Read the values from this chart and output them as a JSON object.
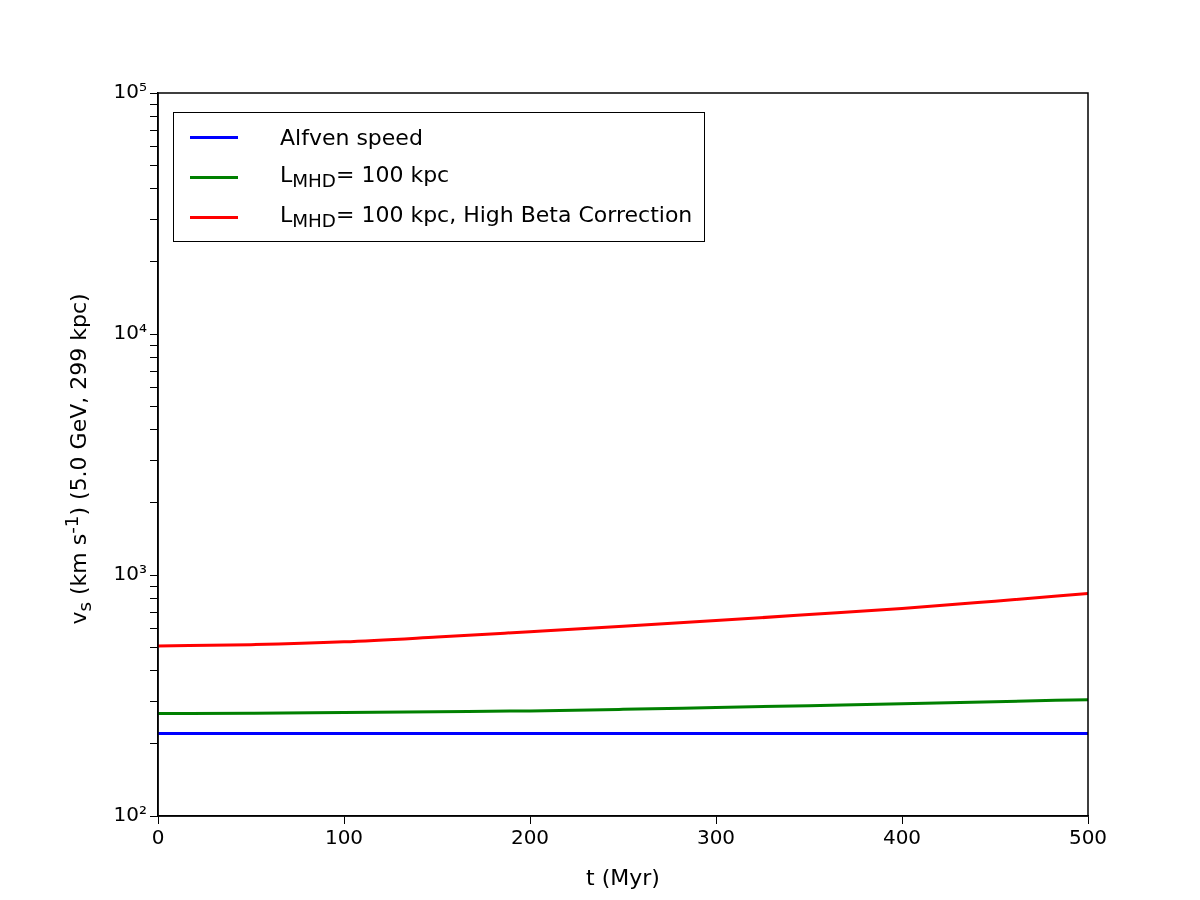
{
  "chart_data": {
    "type": "line",
    "xlabel": "t (Myr)",
    "ylabel": "v$_{s}$ (km s$^{-1}$) (5.0 GeV, 299 kpc)",
    "log": "y",
    "legend": "top left",
    "marker": "none",
    "line_style": "solid",
    "x": [
      0,
      50,
      100,
      150,
      200,
      250,
      300,
      350,
      400,
      450,
      500
    ],
    "xlim": [
      0,
      500
    ],
    "xticks": [
      0,
      100,
      200,
      300,
      400,
      500
    ],
    "ylim": [
      100,
      100000
    ],
    "yticks": [
      {
        "value": 100,
        "label": "10²"
      },
      {
        "value": 200,
        "label": null
      },
      {
        "value": 300,
        "label": null
      },
      {
        "value": 400,
        "label": null
      },
      {
        "value": 500,
        "label": null
      },
      {
        "value": 600,
        "label": null
      },
      {
        "value": 700,
        "label": null
      },
      {
        "value": 800,
        "label": null
      },
      {
        "value": 900,
        "label": null
      },
      {
        "value": 1000,
        "label": "10³"
      },
      {
        "value": 2000,
        "label": null
      },
      {
        "value": 3000,
        "label": null
      },
      {
        "value": 4000,
        "label": null
      },
      {
        "value": 5000,
        "label": null
      },
      {
        "value": 6000,
        "label": null
      },
      {
        "value": 7000,
        "label": null
      },
      {
        "value": 8000,
        "label": null
      },
      {
        "value": 9000,
        "label": null
      },
      {
        "value": 10000,
        "label": "10⁴"
      },
      {
        "value": 20000,
        "label": null
      },
      {
        "value": 30000,
        "label": null
      },
      {
        "value": 40000,
        "label": null
      },
      {
        "value": 50000,
        "label": null
      },
      {
        "value": 60000,
        "label": null
      },
      {
        "value": 70000,
        "label": null
      },
      {
        "value": 80000,
        "label": null
      },
      {
        "value": 90000,
        "label": null
      },
      {
        "value": 100000,
        "label": "10⁵"
      }
    ],
    "series": [
      {
        "name": "Alfven speed",
        "color": "#0000ff",
        "values": [
          220,
          220,
          220,
          220,
          220,
          220,
          220,
          220,
          220,
          220,
          220
        ]
      },
      {
        "name": "L$_{MHD}$= 100 kpc",
        "color": "#008000",
        "values": [
          266,
          267,
          269,
          271,
          273,
          277,
          282,
          287,
          292,
          298,
          304
        ]
      },
      {
        "name": "L$_{MHD}$= 100 kpc, High Beta Correction",
        "color": "#ff0000",
        "values": [
          508,
          514,
          528,
          553,
          582,
          613,
          647,
          685,
          726,
          779,
          839
        ]
      }
    ]
  }
}
